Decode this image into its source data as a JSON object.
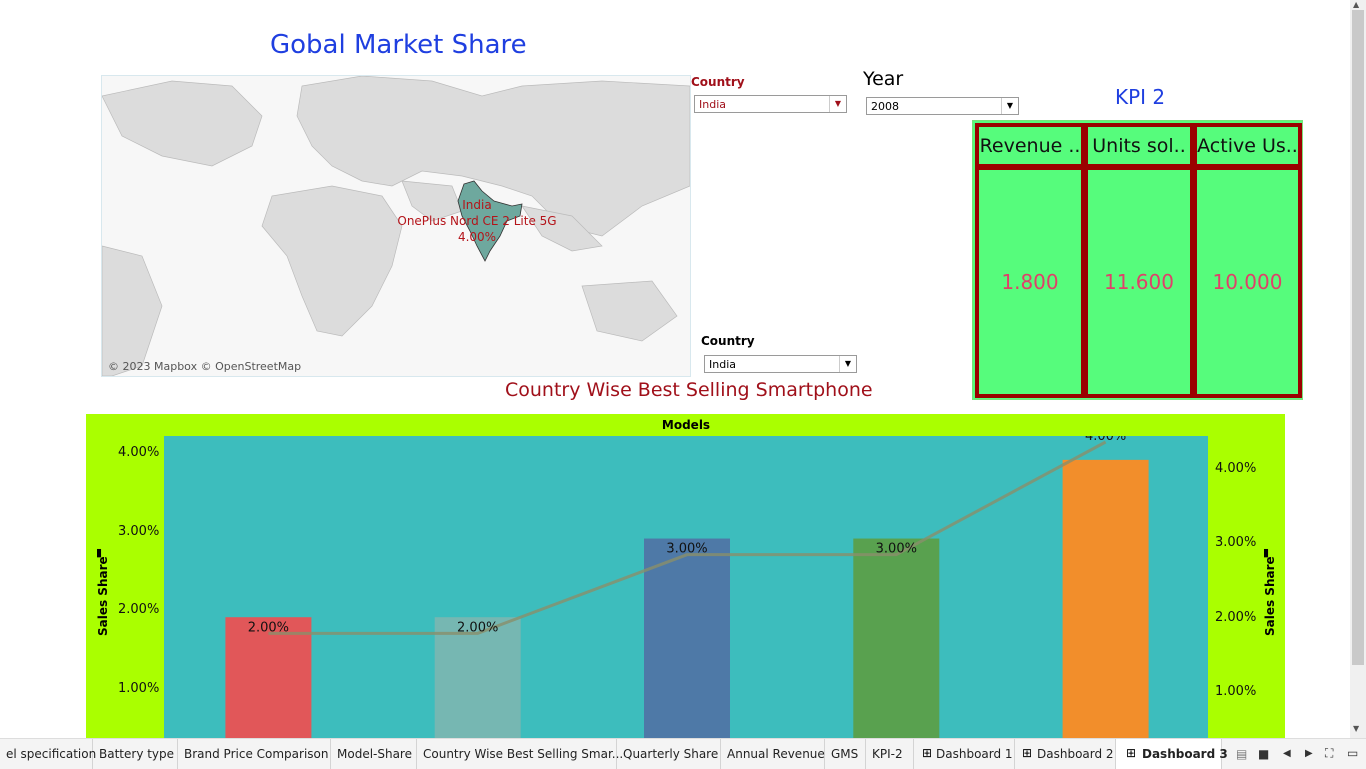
{
  "page": {
    "title": "Gobal Market Share"
  },
  "map": {
    "credit": "© 2023 Mapbox © OpenStreetMap",
    "label_country": "India",
    "label_model": "OnePlus Nord CE 2 Lite 5G",
    "label_share": "4.00%"
  },
  "filters": {
    "country_top": {
      "label": "Country",
      "value": "India"
    },
    "year": {
      "label": "Year",
      "value": "2008"
    },
    "country_bottom": {
      "label": "Country",
      "value": "India"
    }
  },
  "kpi": {
    "title": "KPI 2",
    "headers": [
      "Revenue ..",
      "Units sol..",
      "Active Us.."
    ],
    "values": [
      "1.800",
      "11.600",
      "10.000"
    ]
  },
  "chart_title": "Country Wise Best Selling Smartphone",
  "chart_data": {
    "type": "bar",
    "title": "Country Wise Best Selling Smartphone",
    "column_header": "Models",
    "ylabel": "Sales Share",
    "left_ticks": [
      "4.00%",
      "3.00%",
      "2.00%",
      "1.00%"
    ],
    "right_ticks": [
      "4.00%",
      "3.00%",
      "2.00%",
      "1.00%"
    ],
    "values": [
      2,
      2,
      3,
      3,
      4
    ],
    "data_labels": [
      "2.00%",
      "2.00%",
      "3.00%",
      "3.00%",
      "4.00%"
    ],
    "bar_colors": [
      "#e15759",
      "#76b7b2",
      "#4e79a7",
      "#59a14f",
      "#f28e2b"
    ],
    "line_overlay": true,
    "ylim": [
      0,
      4.2
    ]
  },
  "tabs": [
    "el specification",
    "Battery type",
    "Brand Price Comparison",
    "Model-Share",
    "Country Wise Best Selling Smar...",
    "Quarterly Share",
    "Annual Revenue",
    "GMS",
    "KPI-2",
    "Dashboard 1",
    "Dashboard 2",
    "Dashboard 3"
  ],
  "colors": {
    "accent_title": "#1f3fe0",
    "chart_bg": "#aaff00",
    "plot_bg": "#3dbdbd",
    "kpi_bg": "#56fc7c",
    "kpi_border": "#9b0000"
  }
}
